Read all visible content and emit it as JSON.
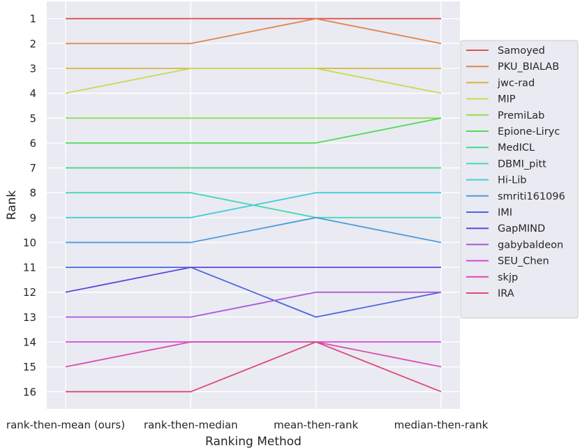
{
  "chart_data": {
    "type": "line",
    "title": "",
    "xlabel": "Ranking Method",
    "ylabel": "Rank",
    "categories": [
      "rank-then-mean (ours)",
      "rank-then-median",
      "mean-then-rank",
      "median-then-rank"
    ],
    "y_ticks": [
      "1",
      "2",
      "3",
      "4",
      "5",
      "6",
      "7",
      "8",
      "9",
      "10",
      "11",
      "12",
      "13",
      "14",
      "15",
      "16"
    ],
    "ylim": [
      16.7,
      0.3
    ],
    "y_inverted": true,
    "grid": true,
    "legend_position": "right",
    "series": [
      {
        "name": "Samoyed",
        "color": "#d9534f",
        "values": [
          1,
          1,
          1,
          1
        ]
      },
      {
        "name": "PKU_BIALAB",
        "color": "#e0844a",
        "values": [
          2,
          2,
          1,
          2
        ]
      },
      {
        "name": "jwc-rad",
        "color": "#d6b340",
        "values": [
          3,
          3,
          3,
          3
        ]
      },
      {
        "name": "MIP",
        "color": "#c6db4e",
        "values": [
          4,
          3,
          3,
          4
        ]
      },
      {
        "name": "PremiLab",
        "color": "#8fdc4a",
        "values": [
          5,
          5,
          5,
          5
        ]
      },
      {
        "name": "Epione-Liryc",
        "color": "#4fdc4f",
        "values": [
          6,
          6,
          6,
          5
        ]
      },
      {
        "name": "MedICL",
        "color": "#47d889",
        "values": [
          7,
          7,
          7,
          7
        ]
      },
      {
        "name": "DBMI_pitt",
        "color": "#45d9b5",
        "values": [
          8,
          8,
          9,
          9
        ]
      },
      {
        "name": "Hi-Lib",
        "color": "#45cdd9",
        "values": [
          9,
          9,
          8,
          8
        ]
      },
      {
        "name": "smriti161096",
        "color": "#4a9bdc",
        "values": [
          10,
          10,
          9,
          10
        ]
      },
      {
        "name": "IMI",
        "color": "#4a67dc",
        "values": [
          11,
          11,
          13,
          12
        ]
      },
      {
        "name": "GapMIND",
        "color": "#5a45dc",
        "values": [
          12,
          11,
          11,
          11
        ]
      },
      {
        "name": "gabybaldeon",
        "color": "#a855dc",
        "values": [
          13,
          13,
          12,
          12
        ]
      },
      {
        "name": "SEU_Chen",
        "color": "#d648dc",
        "values": [
          14,
          14,
          14,
          14
        ]
      },
      {
        "name": "skjp",
        "color": "#dc4ab0",
        "values": [
          15,
          14,
          14,
          15
        ]
      },
      {
        "name": "IRA",
        "color": "#dc4a78",
        "values": [
          16,
          16,
          14,
          16
        ]
      }
    ]
  }
}
